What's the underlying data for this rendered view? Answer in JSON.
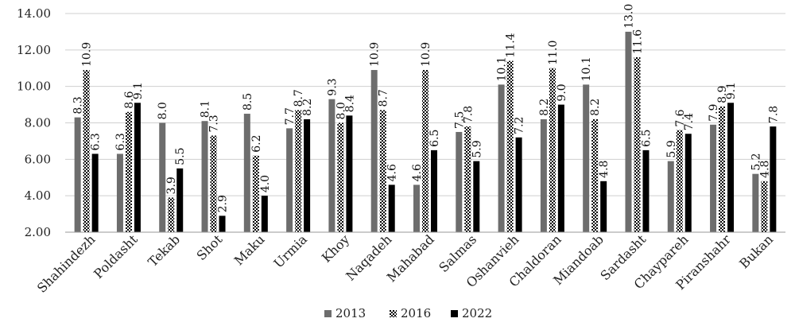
{
  "chart_data": {
    "type": "bar",
    "title": "",
    "xlabel": "",
    "ylabel": "",
    "ylim": [
      2,
      14
    ],
    "yticks": [
      "2.00",
      "4.00",
      "6.00",
      "8.00",
      "10.00",
      "12.00",
      "14.00"
    ],
    "grid": "horizontal",
    "legend_position": "bottom",
    "categories": [
      "Shahindezh",
      "Poldasht",
      "Tekab",
      "Shot",
      "Maku",
      "Urmia",
      "Khoy",
      "Naqadeh",
      "Mahabad",
      "Salmas",
      "Oshanvieh",
      "Chaldoran",
      "Miandoab",
      "Sardasht",
      "Chaypareh",
      "Piranshahr",
      "Bukan"
    ],
    "series": [
      {
        "name": "2013",
        "color": "#6d6d6d",
        "pattern": "solid-gray",
        "values": [
          8.3,
          6.3,
          8.0,
          8.1,
          8.5,
          7.7,
          9.3,
          10.9,
          4.6,
          7.5,
          10.1,
          8.2,
          10.1,
          13.0,
          5.9,
          7.9,
          5.2
        ],
        "labels": [
          "8.3",
          "6.3",
          "8.0",
          "8.1",
          "8.5",
          "7.7",
          "9.3",
          "10.9",
          "4.6",
          "7.5",
          "10.1",
          "8.2",
          "10.1",
          "13.0",
          "5.9",
          "7.9",
          "5.2"
        ]
      },
      {
        "name": "2016",
        "color": "#000000",
        "pattern": "checker",
        "values": [
          10.9,
          8.6,
          3.9,
          7.3,
          6.2,
          8.7,
          8.0,
          8.7,
          10.9,
          7.8,
          11.4,
          11.0,
          8.2,
          11.6,
          7.6,
          8.9,
          4.8
        ],
        "labels": [
          "10.9",
          "8.6",
          "3.9",
          "7.3",
          "6.2",
          "8.7",
          "8.0",
          "8.7",
          "10.9",
          "7.8",
          "11.4",
          "11.0",
          "8.2",
          "11.6",
          "7.6",
          "8.9",
          "4.8"
        ]
      },
      {
        "name": "2022",
        "color": "#000000",
        "pattern": "solid-black",
        "values": [
          6.3,
          9.1,
          5.5,
          2.9,
          4.0,
          8.2,
          8.4,
          4.6,
          6.5,
          5.9,
          7.2,
          9.0,
          4.8,
          6.5,
          7.4,
          9.1,
          7.8
        ],
        "labels": [
          "6.3",
          "9.1",
          "5.5",
          "2.9",
          "4.0",
          "8.2",
          "8.4",
          "4.6",
          "6.5",
          "5.9",
          "7.2",
          "9.0",
          "4.8",
          "6.5",
          "7.4",
          "9.1",
          "7.8"
        ]
      }
    ]
  }
}
